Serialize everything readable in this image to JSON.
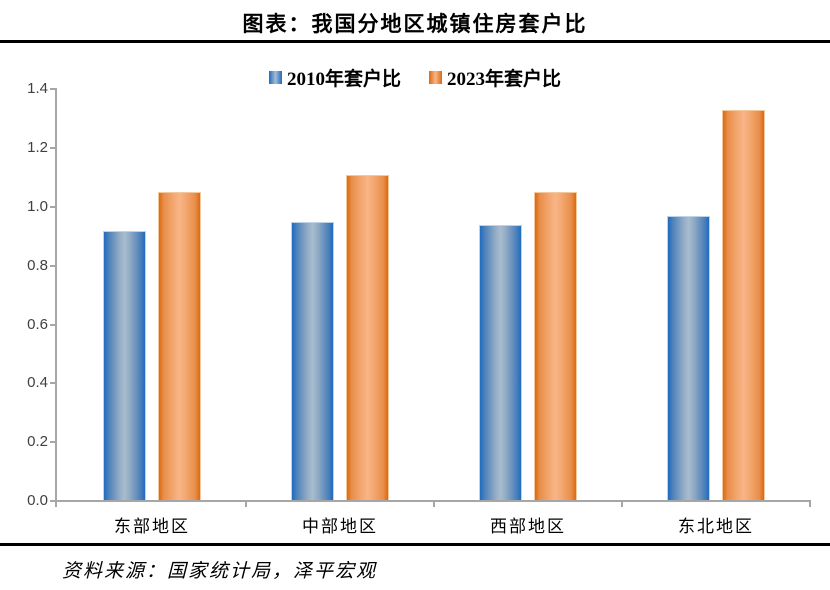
{
  "title": "图表：我国分地区城镇住房套户比",
  "source_note": "资料来源：国家统计局，泽平宏观",
  "legend": {
    "items": [
      {
        "label": "2010年套户比",
        "color_key": "blue"
      },
      {
        "label": "2023年套户比",
        "color_key": "orange"
      }
    ]
  },
  "colors": {
    "blue_edge": "#1F6BC1",
    "blue_center": "#A7BCCF",
    "orange_edge": "#DB6A10",
    "orange_center": "#F8B588",
    "axis": "#A6A6A6",
    "tick_label": "#404040",
    "rule": "#000000",
    "background": "#FFFFFF"
  },
  "chart_data": {
    "type": "bar",
    "title": "图表：我国分地区城镇住房套户比",
    "categories": [
      "东部地区",
      "中部地区",
      "西部地区",
      "东北地区"
    ],
    "series": [
      {
        "name": "2010年套户比",
        "color_key": "blue",
        "values": [
          0.92,
          0.95,
          0.94,
          0.97
        ]
      },
      {
        "name": "2023年套户比",
        "color_key": "orange",
        "values": [
          1.05,
          1.11,
          1.05,
          1.33
        ]
      }
    ],
    "xlabel": "",
    "ylabel": "",
    "ylim": [
      0,
      1.4
    ],
    "yticks": [
      0.0,
      0.2,
      0.4,
      0.6,
      0.8,
      1.0,
      1.2,
      1.4
    ],
    "ytick_labels": [
      "0.0",
      "0.2",
      "0.4",
      "0.6",
      "0.8",
      "1.0",
      "1.2",
      "1.4"
    ],
    "grid": false,
    "legend_position": "top-center"
  }
}
